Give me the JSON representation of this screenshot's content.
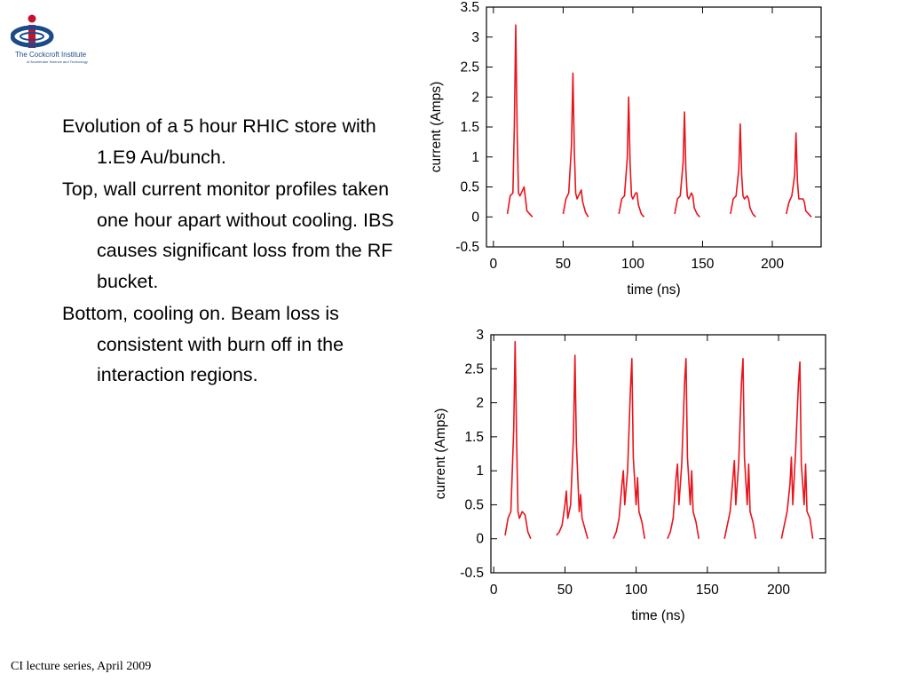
{
  "logo": {
    "org_name": "The Cockcroft Institute",
    "subtitle": "of Accelerator Science and Technology"
  },
  "text": {
    "paragraphs": [
      "Evolution of a 5 hour RHIC store with 1.E9 Au/bunch.",
      "Top,  wall current monitor profiles taken one hour apart without cooling. IBS causes significant loss from the RF bucket.",
      "Bottom, cooling on.  Beam loss is consistent with burn off in the interaction regions."
    ]
  },
  "footer": {
    "label": "CI lecture series, April 2009"
  },
  "colors": {
    "trace": "#e8141c"
  },
  "chart_data": [
    {
      "type": "line",
      "xlabel": "time (ns)",
      "ylabel": "current (Amps)",
      "xlim": [
        -5,
        235
      ],
      "ylim": [
        -0.5,
        3.5
      ],
      "xticks": [
        0,
        50,
        100,
        150,
        200
      ],
      "yticks": [
        -0.5,
        0,
        0.5,
        1,
        1.5,
        2,
        2.5,
        3,
        3.5
      ],
      "ytick_labels": [
        "-0.5",
        "0",
        "0.5",
        "1",
        "1.5",
        "2",
        "2.5",
        "3",
        "3.5"
      ],
      "grid": false,
      "series": [
        {
          "values_note_free": true,
          "x": [
            10,
            12,
            14,
            15,
            16,
            17,
            18,
            19,
            20,
            22,
            23,
            24,
            26,
            28,
            50,
            52,
            54,
            56,
            57,
            58,
            59,
            60,
            62,
            63,
            64,
            66,
            68,
            90,
            92,
            94,
            96,
            97,
            98,
            99,
            100,
            102,
            103,
            104,
            106,
            108,
            130,
            132,
            134,
            136,
            137,
            138,
            139,
            140,
            142,
            143,
            144,
            146,
            148,
            170,
            172,
            174,
            176,
            177,
            178,
            179,
            180,
            182,
            183,
            184,
            186,
            188,
            210,
            212,
            214,
            216,
            217,
            218,
            219,
            220,
            222,
            223,
            224,
            226,
            228
          ],
          "y": [
            0.05,
            0.35,
            0.4,
            1.5,
            3.2,
            1.4,
            0.4,
            0.35,
            0.4,
            0.5,
            0.3,
            0.1,
            0.05,
            0.0,
            0.05,
            0.3,
            0.4,
            1.2,
            2.4,
            1.1,
            0.4,
            0.3,
            0.4,
            0.45,
            0.25,
            0.08,
            0.0,
            0.05,
            0.3,
            0.35,
            1.0,
            2.0,
            0.9,
            0.35,
            0.3,
            0.4,
            0.4,
            0.2,
            0.05,
            0.0,
            0.05,
            0.3,
            0.35,
            0.9,
            1.75,
            0.8,
            0.35,
            0.3,
            0.4,
            0.35,
            0.15,
            0.05,
            0.0,
            0.05,
            0.3,
            0.35,
            0.8,
            1.55,
            0.7,
            0.35,
            0.3,
            0.35,
            0.3,
            0.15,
            0.05,
            0.0,
            0.05,
            0.25,
            0.35,
            0.7,
            1.4,
            0.6,
            0.3,
            0.3,
            0.3,
            0.25,
            0.1,
            0.05,
            0.0
          ]
        }
      ]
    },
    {
      "type": "line",
      "xlabel": "time (ns)",
      "ylabel": "current (Amps)",
      "xlim": [
        -2,
        233
      ],
      "ylim": [
        -0.5,
        3
      ],
      "xticks": [
        0,
        50,
        100,
        150,
        200
      ],
      "yticks": [
        -0.5,
        0,
        0.5,
        1,
        1.5,
        2,
        2.5,
        3
      ],
      "ytick_labels": [
        "-0.5",
        "0",
        "0.5",
        "1",
        "1.5",
        "2",
        "2.5",
        "3"
      ],
      "grid": false,
      "series": [
        {
          "x": [
            8,
            10,
            12,
            14,
            15,
            16,
            17,
            18,
            20,
            22,
            24,
            26,
            44,
            46,
            48,
            50,
            51,
            52,
            54,
            56,
            57,
            58,
            60,
            61,
            62,
            64,
            66,
            84,
            86,
            88,
            90,
            91,
            92,
            94,
            96,
            97,
            98,
            100,
            101,
            102,
            104,
            106,
            122,
            124,
            126,
            128,
            129,
            130,
            132,
            134,
            135,
            136,
            138,
            139,
            140,
            142,
            144,
            162,
            164,
            166,
            168,
            169,
            170,
            172,
            174,
            175,
            176,
            178,
            179,
            180,
            182,
            184,
            202,
            204,
            206,
            208,
            209,
            210,
            212,
            214,
            215,
            216,
            218,
            219,
            220,
            222,
            224
          ],
          "y": [
            0.05,
            0.3,
            0.4,
            1.6,
            2.9,
            1.5,
            0.4,
            0.3,
            0.4,
            0.35,
            0.1,
            0.0,
            0.05,
            0.1,
            0.2,
            0.5,
            0.7,
            0.3,
            0.5,
            1.5,
            2.7,
            1.4,
            0.4,
            0.65,
            0.3,
            0.15,
            0.0,
            0.0,
            0.1,
            0.3,
            0.8,
            1.0,
            0.5,
            1.0,
            2.2,
            2.65,
            1.2,
            0.5,
            0.9,
            0.4,
            0.25,
            0.0,
            0.0,
            0.1,
            0.3,
            0.9,
            1.1,
            0.5,
            1.1,
            2.3,
            2.65,
            1.2,
            0.5,
            1.0,
            0.4,
            0.25,
            0.0,
            0.0,
            0.2,
            0.4,
            0.9,
            1.15,
            0.5,
            1.1,
            2.3,
            2.65,
            1.2,
            0.5,
            1.1,
            0.4,
            0.25,
            0.0,
            0.0,
            0.2,
            0.4,
            0.8,
            1.2,
            0.5,
            1.3,
            2.3,
            2.6,
            1.1,
            0.5,
            1.1,
            0.4,
            0.3,
            0.0
          ]
        }
      ]
    }
  ]
}
